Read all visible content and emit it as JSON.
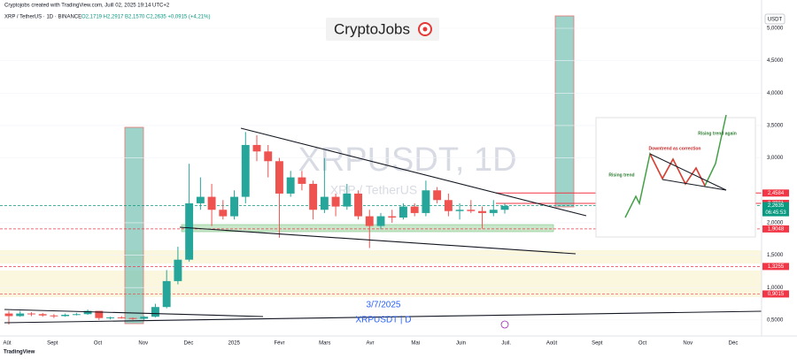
{
  "header": {
    "attribution": "Cryptojobs created with TradingView.com, Juill 02, 2025 19:14 UTC+2",
    "symbol": "XRP / TetherUS · 1D · BINANCE",
    "ohlc": "O2,1719 H2,2917 B2,1570 C2,2635 +0,0915 (+4,21%)"
  },
  "logo": "CryptoJobs",
  "watermark": {
    "symbol": "XRPUSDT, 1D",
    "name": "XRP / TetherUS"
  },
  "chart_data": {
    "type": "candlestick",
    "y_unit": "USDT",
    "ylim": [
      0.28,
      5.3
    ],
    "yticks": [
      {
        "value": 0.5,
        "label": "0,5000"
      },
      {
        "value": 1,
        "label": "1,0000"
      },
      {
        "value": 1.5,
        "label": "1,5000"
      },
      {
        "value": 2,
        "label": "2,0000"
      },
      {
        "value": 3,
        "label": "3,0000"
      },
      {
        "value": 3.5,
        "label": "3,5000"
      },
      {
        "value": 4,
        "label": "4,0000"
      },
      {
        "value": 4.5,
        "label": "4,5000"
      },
      {
        "value": 5,
        "label": "5,0000"
      }
    ],
    "x_labels": [
      "Aût",
      "Sept",
      "Oct",
      "Nov",
      "Déc",
      "2025",
      "Févr",
      "Mars",
      "Avr",
      "Mai",
      "Juin",
      "Juil.",
      "Août",
      "Sept",
      "Oct",
      "Nov",
      "Déc"
    ],
    "up_color": "#26a69a",
    "down_color": "#ef5350",
    "open": [
      0.6,
      0.56,
      0.6,
      0.59,
      0.57,
      0.56,
      0.58,
      0.59,
      0.64,
      0.53,
      0.54,
      0.53,
      0.52,
      0.55,
      0.7,
      1.1,
      1.43,
      2.3,
      2.4,
      2.2,
      2.1,
      2.4,
      3.2,
      3.1,
      2.95,
      2.45,
      2.7,
      2.6,
      2.2,
      2.4,
      2.25,
      2.45,
      2.1,
      1.95,
      2.1,
      2.08,
      2.25,
      2.15,
      2.5,
      2.35,
      2.18,
      2.2,
      2.18,
      2.15,
      2.2
    ],
    "high": [
      0.64,
      0.64,
      0.62,
      0.61,
      0.59,
      0.6,
      0.61,
      0.66,
      0.64,
      0.55,
      0.56,
      0.54,
      0.56,
      0.75,
      1.27,
      1.63,
      2.91,
      2.7,
      2.6,
      2.35,
      2.5,
      3.4,
      3.35,
      3.2,
      3.0,
      2.8,
      2.8,
      2.65,
      3.0,
      2.45,
      2.6,
      2.5,
      2.2,
      2.15,
      2.2,
      2.3,
      2.3,
      2.65,
      2.55,
      2.45,
      2.3,
      2.35,
      2.25,
      2.35,
      2.3
    ],
    "low": [
      0.43,
      0.55,
      0.56,
      0.55,
      0.53,
      0.55,
      0.57,
      0.58,
      0.5,
      0.51,
      0.52,
      0.5,
      0.5,
      0.54,
      0.68,
      1.05,
      1.4,
      2.2,
      1.95,
      2.05,
      2.05,
      2.3,
      2.95,
      2.7,
      1.77,
      2.4,
      2.5,
      2.05,
      2.15,
      2.1,
      2.2,
      2.05,
      1.61,
      1.9,
      2.0,
      2.05,
      2.1,
      2.1,
      2.3,
      2.1,
      2.05,
      2.15,
      1.91,
      2.1,
      2.14
    ],
    "close": [
      0.56,
      0.6,
      0.59,
      0.57,
      0.56,
      0.58,
      0.59,
      0.64,
      0.53,
      0.54,
      0.53,
      0.52,
      0.55,
      0.7,
      1.1,
      1.43,
      2.3,
      2.4,
      2.2,
      2.1,
      2.4,
      3.2,
      3.1,
      2.95,
      2.45,
      2.7,
      2.6,
      2.2,
      2.4,
      2.25,
      2.45,
      2.1,
      1.95,
      2.1,
      2.08,
      2.25,
      2.15,
      2.5,
      2.35,
      2.18,
      2.2,
      2.18,
      2.15,
      2.2,
      2.26
    ],
    "price_levels": {
      "values": [
        2.4584,
        2.2991,
        2.2635,
        1.9048,
        1.3255,
        0.9015
      ],
      "value_labels": [
        "2,4584",
        "2,2991",
        "2,2635",
        "1,9048",
        "1,3255",
        "0,9015"
      ],
      "colors": [
        "#f23645",
        "#f23645",
        "#089981",
        "#f23645",
        "#f23645",
        "#f23645"
      ]
    },
    "countdown": "06:45:53",
    "annotations": [
      "3/7/2025",
      "XRPUSDT | D"
    ]
  },
  "inset": {
    "labels": [
      "Rising trend",
      "Downtrend as correction",
      "Rising trend again"
    ]
  },
  "footer": "TradingView"
}
